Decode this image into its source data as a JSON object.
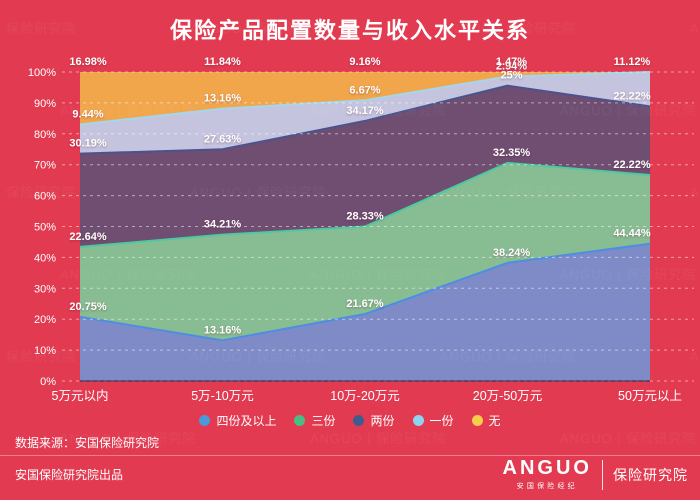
{
  "title": "保险产品配置数量与收入水平关系",
  "watermark": "ANGUO | 保险研究院",
  "colors": {
    "background": "#E23B51",
    "text": "#FFFFFF",
    "grid": "rgba(255,255,255,0.5)",
    "baseline": "rgba(58,45,82,0.6)"
  },
  "chart_data": {
    "type": "area",
    "stacked": true,
    "percent_stack": true,
    "title": "保险产品配置数量与收入水平关系",
    "categories": [
      "5万元以内",
      "5万-10万元",
      "10万-20万元",
      "20万-50万元",
      "50万元以上"
    ],
    "series": [
      {
        "name": "四份及以上",
        "values": [
          20.75,
          13.16,
          21.67,
          38.24,
          44.44
        ],
        "labels": [
          "20.75%",
          "13.16%",
          "21.67%",
          "38.24%",
          "44.44%"
        ],
        "fill": "#7E8BC7",
        "stroke": "#4C8EE4",
        "legend_dot": "#4E97D9"
      },
      {
        "name": "三份",
        "values": [
          22.64,
          34.21,
          28.33,
          32.35,
          22.22
        ],
        "labels": [
          "22.64%",
          "34.21%",
          "28.33%",
          "32.35%",
          "22.22%"
        ],
        "fill": "#88BC92",
        "stroke": "#4CC9A1",
        "legend_dot": "#49BD85"
      },
      {
        "name": "两份",
        "values": [
          30.19,
          27.63,
          34.17,
          25,
          22.22
        ],
        "labels": [
          "30.19%",
          "27.63%",
          "34.17%",
          "25%",
          "22.22%"
        ],
        "fill": "#6F4E71",
        "stroke": "#49548E",
        "legend_dot": "#3F5C8E"
      },
      {
        "name": "一份",
        "values": [
          9.44,
          13.16,
          6.67,
          2.94,
          11.12
        ],
        "labels": [
          "9.44%",
          "13.16%",
          "6.67%",
          "2.94%",
          "11.12%"
        ],
        "fill": "#C5C4DE",
        "stroke": "#A4D6EC",
        "legend_dot": "#8FD2F0"
      },
      {
        "name": "无",
        "values": [
          16.98,
          11.84,
          9.16,
          1.47,
          0
        ],
        "labels": [
          "16.98%",
          "11.84%",
          "9.16%",
          "1.47%",
          ""
        ],
        "fill": "#F1A64C",
        "stroke": "",
        "legend_dot": "#F7CD49"
      }
    ],
    "ylim": [
      0,
      100
    ],
    "yticks": [
      "0%",
      "10%",
      "20%",
      "30%",
      "40%",
      "50%",
      "60%",
      "70%",
      "80%",
      "90%",
      "100%"
    ],
    "grid": "horizontal dashed",
    "legend_position": "bottom"
  },
  "footer": {
    "source": "数据来源：安国保险研究院",
    "produced_by": "安国保险研究院出品",
    "logo_name": "ANGUO",
    "logo_sub": "安国保险经纪",
    "logo_right": "保险研究院"
  }
}
